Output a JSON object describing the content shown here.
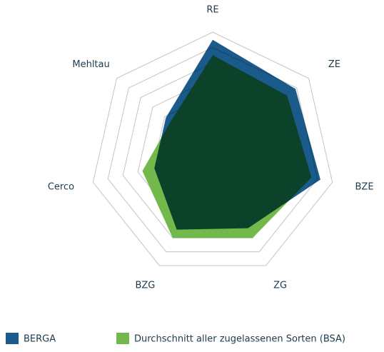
{
  "chart_data": {
    "type": "radar",
    "categories": [
      "RE",
      "ZE",
      "BZE",
      "ZG",
      "BZG",
      "Cerco",
      "Mehltau"
    ],
    "series": [
      {
        "name": "BERGA",
        "color": "#1a5b8c",
        "values": [
          7.5,
          6.9,
          7.2,
          5.3,
          5.4,
          3.9,
          3.9
        ]
      },
      {
        "name": "Durchschnitt aller zugelassenen Sorten (BSA)",
        "color": "#72b84b",
        "values": [
          6.5,
          6.2,
          6.6,
          6.0,
          6.0,
          4.7,
          3.5
        ]
      }
    ],
    "rlim": [
      0,
      8
    ],
    "rticks": [
      1,
      2,
      3,
      4,
      5,
      6,
      7,
      8
    ],
    "grid": true,
    "legend": "bottom"
  }
}
